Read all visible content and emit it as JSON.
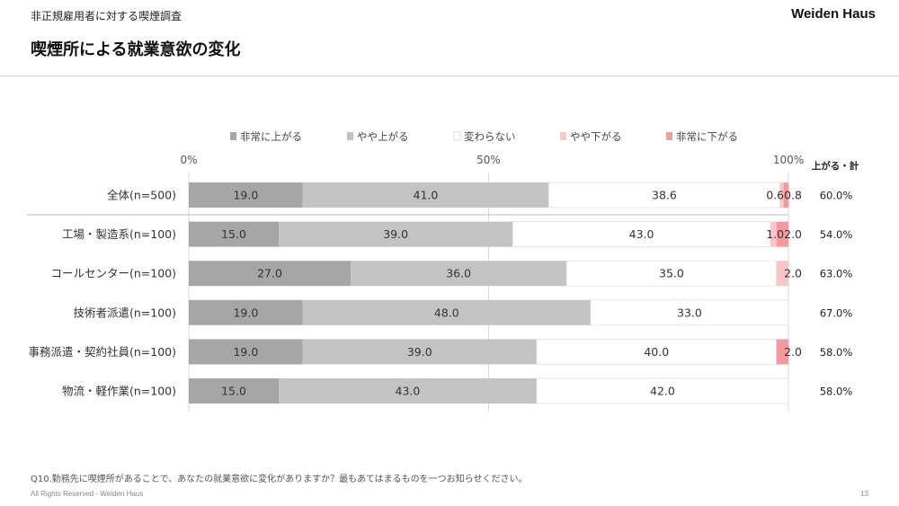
{
  "header": {
    "subtitle": "非正規雇用者に対する喫煙調査",
    "brand": "Weiden Haus",
    "title": "喫煙所による就業意欲の変化"
  },
  "footer": {
    "question": "Q10.勤務先に喫煙所があることで、あなたの就業意欲に変化がありますか？最もあてはまるものを一つお知らせください。",
    "copyright": "All Rights Reserved - Weiden Haus",
    "page": "13"
  },
  "chart_data": {
    "type": "bar",
    "orientation": "horizontal",
    "stacked": "100%",
    "xlim": [
      0,
      100
    ],
    "xticks": [
      "0%",
      "50%",
      "100%"
    ],
    "legend_position": "top",
    "total_header": "上がる・計",
    "categories": [
      "全体(n=500)",
      "工場・製造系(n=100)",
      "コールセンター(n=100)",
      "技術者派遣(n=100)",
      "事務派遣・契約社員(n=100)",
      "物流・軽作業(n=100)"
    ],
    "series": [
      {
        "name": "非常に上がる",
        "color": "#a6a6a6",
        "text_color": "#333333",
        "values": [
          19.0,
          15.0,
          27.0,
          19.0,
          19.0,
          15.0
        ],
        "labels": [
          "19.0",
          "15.0",
          "27.0",
          "19.0",
          "19.0",
          "15.0"
        ]
      },
      {
        "name": "やや上がる",
        "color": "#c3c3c3",
        "text_color": "#333333",
        "values": [
          41.0,
          39.0,
          36.0,
          48.0,
          39.0,
          43.0
        ],
        "labels": [
          "41.0",
          "39.0",
          "36.0",
          "48.0",
          "39.0",
          "43.0"
        ]
      },
      {
        "name": "変わらない",
        "color": "#ffffff",
        "text_color": "#333333",
        "values": [
          38.6,
          43.0,
          35.0,
          33.0,
          40.0,
          42.0
        ],
        "labels": [
          "38.6",
          "43.0",
          "35.0",
          "33.0",
          "40.0",
          "42.0"
        ]
      },
      {
        "name": "やや下がる",
        "color": "#f8c6c6",
        "text_color": "#333333",
        "values": [
          0.6,
          1.0,
          2.0,
          0,
          0,
          0
        ],
        "labels": [
          "0.6",
          "1.0",
          "2.0",
          "",
          "",
          ""
        ]
      },
      {
        "name": "非常に下がる",
        "color": "#f4999d",
        "text_color": "#333333",
        "values": [
          0.8,
          2.0,
          0,
          0,
          2.0,
          0
        ],
        "labels": [
          "0.8",
          "2.0",
          "",
          "",
          "2.0",
          ""
        ]
      }
    ],
    "totals": [
      "60.0%",
      "54.0%",
      "63.0%",
      "67.0%",
      "58.0%",
      "58.0%"
    ]
  }
}
